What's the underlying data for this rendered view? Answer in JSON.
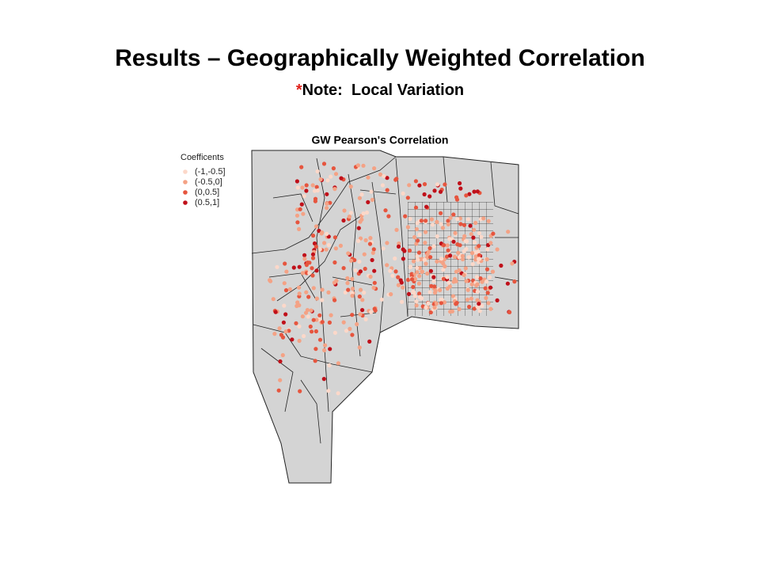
{
  "slide": {
    "title": "Results – Geographically Weighted Correlation",
    "note": {
      "marker": "*",
      "text": "Note:  Local Variation"
    }
  },
  "map": {
    "title": "GW Pearson's Correlation",
    "legend": {
      "title": "Coefficents",
      "entries": [
        {
          "label": "(-1,-0.5]",
          "color": "#fcd8c9"
        },
        {
          "label": "(-0.5,0]",
          "color": "#f4a285"
        },
        {
          "label": "(0,0.5]",
          "color": "#e6553e"
        },
        {
          "label": "(0.5,1]",
          "color": "#c0101a"
        }
      ]
    }
  }
}
